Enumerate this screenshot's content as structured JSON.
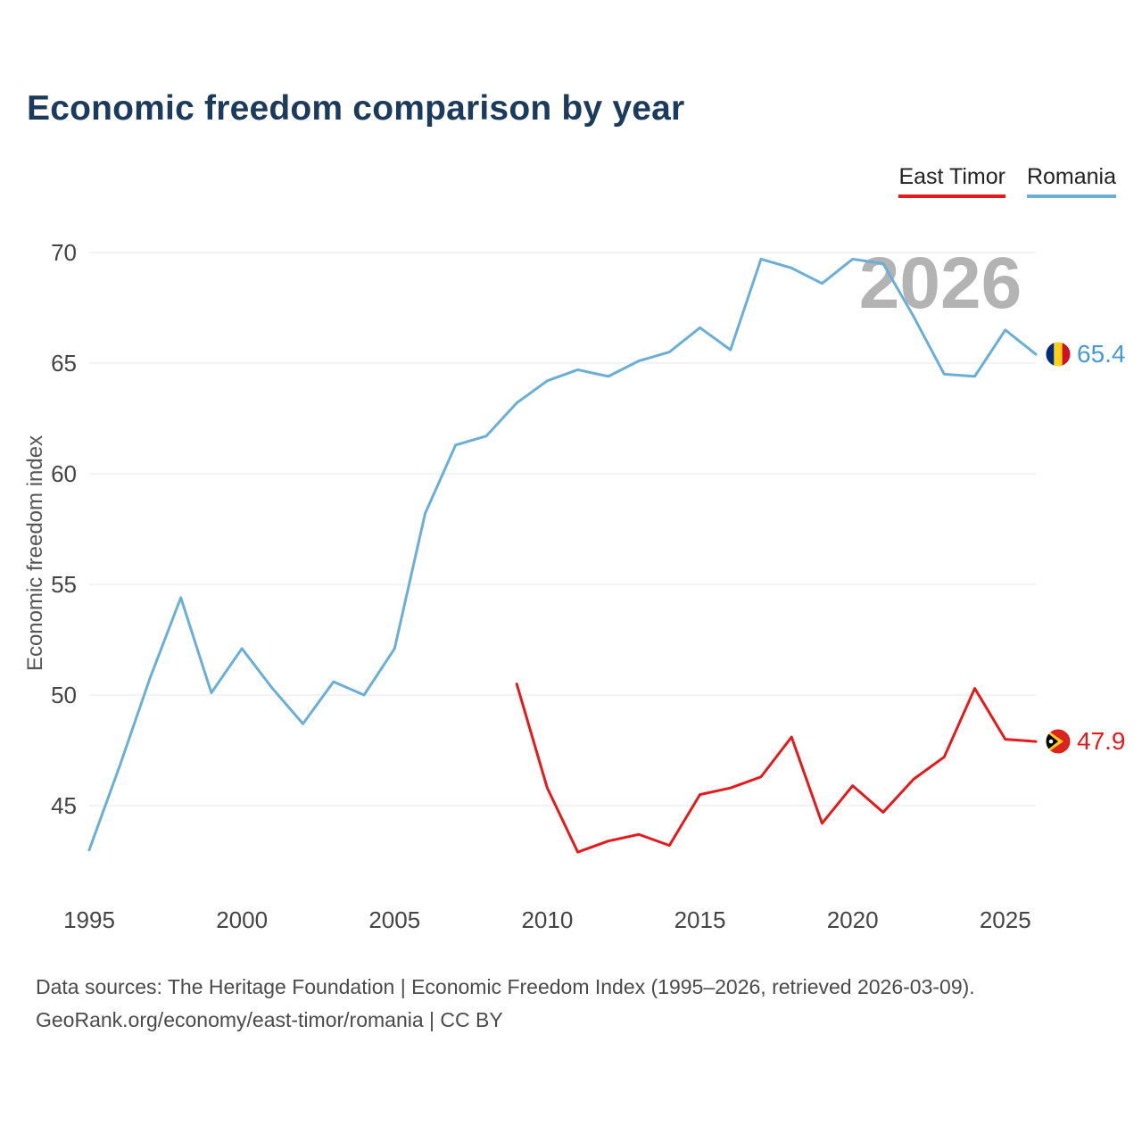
{
  "title": "Economic freedom comparison by year",
  "legend": [
    {
      "label": "East Timor",
      "color": "#e41a1c"
    },
    {
      "label": "Romania",
      "color": "#6baed6"
    }
  ],
  "watermark": "2026",
  "footer": {
    "line1": "Data sources: The Heritage Foundation | Economic Freedom Index (1995–2026, retrieved 2026-03-09).",
    "line2": "GeoRank.org/economy/east-timor/romania | CC BY"
  },
  "chart_data": {
    "type": "line",
    "title": "Economic freedom comparison by year",
    "xlabel": "",
    "ylabel": "Economic freedom index",
    "x_ticks": [
      1995,
      2000,
      2005,
      2010,
      2015,
      2020,
      2025
    ],
    "y_ticks": [
      45,
      50,
      55,
      60,
      65,
      70
    ],
    "xlim": [
      1995,
      2026
    ],
    "ylim": [
      42,
      71
    ],
    "grid": "horizontal",
    "legend_position": "top-right",
    "series": [
      {
        "name": "Romania",
        "color": "#6baed6",
        "end_label": "65.4",
        "x": [
          1995,
          1996,
          1997,
          1998,
          1999,
          2000,
          2001,
          2002,
          2003,
          2004,
          2005,
          2006,
          2007,
          2008,
          2009,
          2010,
          2011,
          2012,
          2013,
          2014,
          2015,
          2016,
          2017,
          2018,
          2019,
          2020,
          2021,
          2022,
          2023,
          2024,
          2025,
          2026
        ],
        "values": [
          43.0,
          46.8,
          50.8,
          54.4,
          50.1,
          52.1,
          50.3,
          48.7,
          50.6,
          50.0,
          52.1,
          58.2,
          61.3,
          61.7,
          63.2,
          64.2,
          64.7,
          64.4,
          65.1,
          65.5,
          66.6,
          65.6,
          69.7,
          69.3,
          68.6,
          69.7,
          69.5,
          67.1,
          64.5,
          64.4,
          66.5,
          65.4
        ]
      },
      {
        "name": "East Timor",
        "color": "#e41a1c",
        "end_label": "47.9",
        "x": [
          2009,
          2010,
          2011,
          2012,
          2013,
          2014,
          2015,
          2016,
          2017,
          2018,
          2019,
          2020,
          2021,
          2022,
          2023,
          2024,
          2025,
          2026
        ],
        "values": [
          50.5,
          45.8,
          42.9,
          43.4,
          43.7,
          43.2,
          45.5,
          45.8,
          46.3,
          48.1,
          44.2,
          45.9,
          44.7,
          46.2,
          47.2,
          50.3,
          48.0,
          47.9
        ]
      }
    ]
  }
}
